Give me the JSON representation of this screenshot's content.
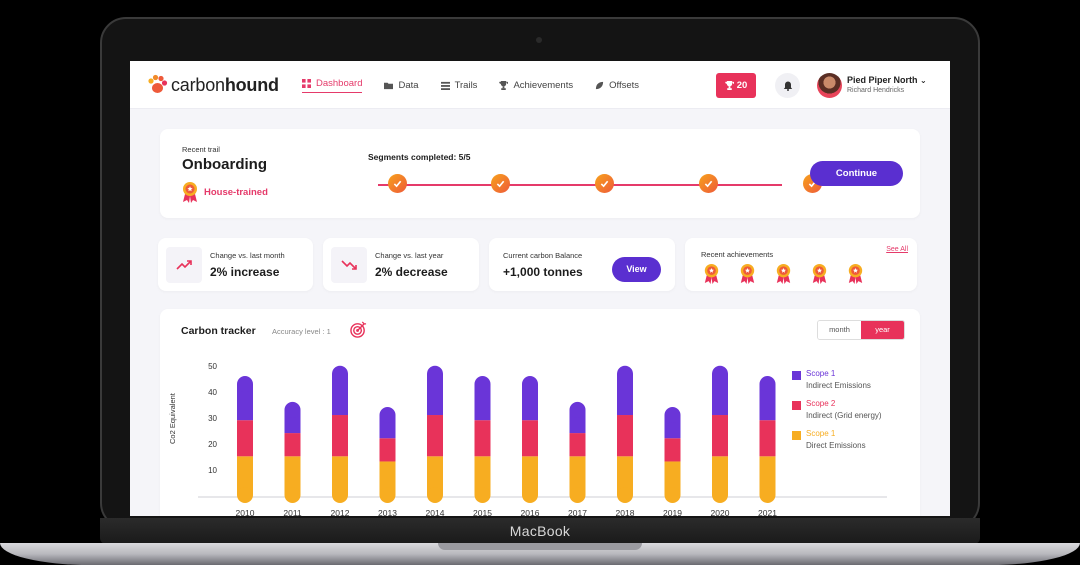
{
  "device_label": "MacBook",
  "app": {
    "logo_light": "carbon",
    "logo_bold": "hound"
  },
  "nav": [
    {
      "label": "Dashboard",
      "icon": "grid-icon",
      "active": true
    },
    {
      "label": "Data",
      "icon": "folder-icon",
      "active": false
    },
    {
      "label": "Trails",
      "icon": "list-icon",
      "active": false
    },
    {
      "label": "Achievements",
      "icon": "trophy-icon",
      "active": false
    },
    {
      "label": "Offsets",
      "icon": "leaf-icon",
      "active": false
    }
  ],
  "header": {
    "trophy_count": "20",
    "user_name": "Pied Piper North",
    "user_sub": "Richard Hendricks"
  },
  "trail": {
    "recent_label": "Recent trail",
    "title": "Onboarding",
    "badge": "House-trained",
    "segments_label": "Segments completed: 5/5",
    "segments_total": 5,
    "segments_done": 5,
    "continue_label": "Continue"
  },
  "stats": {
    "month_label": "Change vs. last month",
    "month_value": "2% increase",
    "year_label": "Change vs. last year",
    "year_value": "2% decrease",
    "balance_label": "Current carbon Balance",
    "balance_value": "+1,000 tonnes",
    "view_label": "View",
    "achievements_label": "Recent achievements",
    "see_all_label": "See All",
    "achievement_count": 5
  },
  "tracker": {
    "title": "Carbon tracker",
    "accuracy": "Accuracy level : 1",
    "toggle_month": "month",
    "toggle_year": "year",
    "toggle_selected": "year"
  },
  "colors": {
    "purple": "#6a35d8",
    "pink": "#e8325a",
    "amber": "#f7ad21",
    "accent": "#5a2fd0"
  },
  "chart_data": {
    "type": "bar",
    "stacked": true,
    "ylabel": "Co2 Equivalent",
    "yticks": [
      10,
      20,
      30,
      40,
      50
    ],
    "ylim": [
      0,
      50
    ],
    "categories": [
      "2010",
      "2011",
      "2012",
      "2013",
      "2014",
      "2015",
      "2016",
      "2017",
      "2018",
      "2019",
      "2020",
      "2021"
    ],
    "series": [
      {
        "name": "Scope 1",
        "description": "Direct Emissions",
        "color": "#f7ad21",
        "values": [
          15,
          15,
          15,
          13,
          15,
          15,
          15,
          15,
          15,
          13,
          15,
          15
        ]
      },
      {
        "name": "Scope 2",
        "description": "Indirect (Grid energy)",
        "color": "#e8325a",
        "values": [
          14,
          9,
          16,
          9,
          16,
          14,
          14,
          9,
          16,
          9,
          16,
          14
        ]
      },
      {
        "name": "Scope 1",
        "description": "Indirect Emissions",
        "color": "#6a35d8",
        "values": [
          14,
          9,
          16,
          9,
          16,
          14,
          14,
          9,
          16,
          9,
          16,
          14
        ]
      }
    ],
    "legend_position": "right"
  }
}
